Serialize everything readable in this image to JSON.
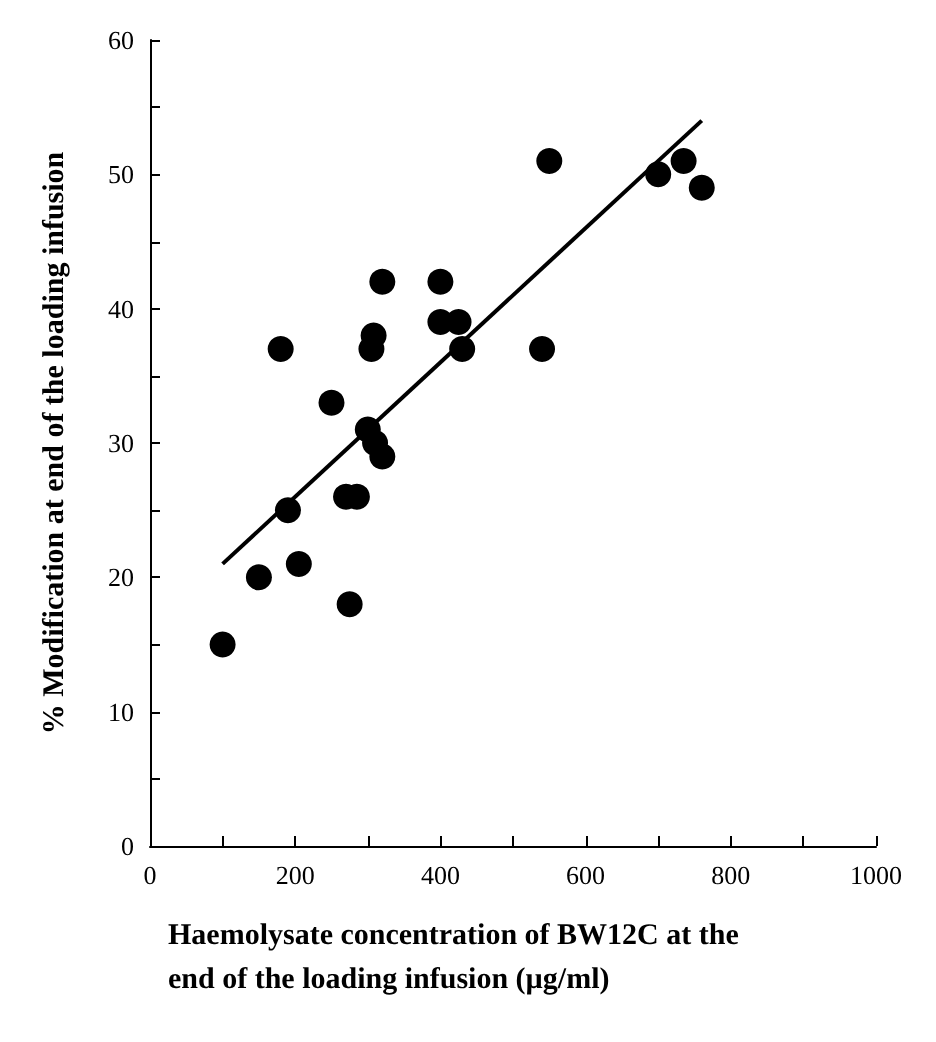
{
  "chart_data": {
    "type": "scatter",
    "xlabel": "Haemolysate concentration of BW12C at the end of the loading infusion (µg/ml)",
    "ylabel": "% Modification at end of the loading infusion",
    "grid": false,
    "xlim": [
      0,
      1000
    ],
    "ylim": [
      0,
      60
    ],
    "xticks": [
      0,
      {
        "value": 100,
        "label": null
      },
      200,
      {
        "value": 300,
        "label": null
      },
      400,
      {
        "value": 500,
        "label": null
      },
      600,
      {
        "value": 700,
        "label": null
      },
      800,
      {
        "value": 900,
        "label": null
      },
      1000
    ],
    "yticks": [
      0,
      {
        "value": 5,
        "label": null
      },
      10,
      {
        "value": 15,
        "label": null
      },
      20,
      {
        "value": 25,
        "label": null
      },
      30,
      {
        "value": 35,
        "label": null
      },
      40,
      {
        "value": 45,
        "label": null
      },
      50,
      {
        "value": 55,
        "label": null
      },
      60
    ],
    "series": [
      {
        "marker": "circle",
        "color": "#000000",
        "x": [
          100,
          150,
          180,
          190,
          205,
          250,
          270,
          275,
          285,
          300,
          305,
          308,
          310,
          320,
          320,
          400,
          400,
          425,
          430,
          540,
          550,
          700,
          735,
          760
        ],
        "values": [
          15,
          20,
          37,
          25,
          21,
          33,
          26,
          18,
          26,
          31,
          37,
          38,
          30,
          29,
          42,
          42,
          39,
          39,
          37,
          37,
          51,
          50,
          51,
          49
        ]
      },
      {
        "type": "line",
        "color": "#000000",
        "x": [
          100,
          760
        ],
        "values": [
          21,
          54
        ]
      }
    ]
  }
}
